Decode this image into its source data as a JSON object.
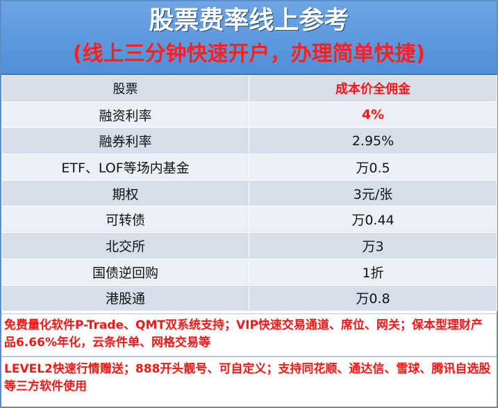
{
  "header": {
    "title": "股票费率线上参考",
    "subtitle": "(线上三分钟快速开户，办理简单快捷)"
  },
  "table": {
    "header": [
      "股票",
      "成本价全佣金"
    ],
    "rows": [
      {
        "item": "融资利率",
        "value": "4%"
      },
      {
        "item": "融券利率",
        "value": "2.95%"
      },
      {
        "item": "ETF、LOF等场内基金",
        "value": "万0.5"
      },
      {
        "item": "期权",
        "value": "3元/张"
      },
      {
        "item": "可转债",
        "value": "万0.44"
      },
      {
        "item": "北交所",
        "value": "万3"
      },
      {
        "item": "国债逆回购",
        "value": "1折"
      },
      {
        "item": "港股通",
        "value": "万0.8"
      }
    ]
  },
  "notes": [
    "免费量化软件P-Trade、QMT双系统支持；VIP快速交易通道、席位、网关；保本型理财产品6.66%年化，云条件单、网格交易等",
    "LEVEL2快速行情赠送；888开头靓号、可自定义；支持同花顺、通达信、雪球、腾讯自选股等三方软件使用"
  ],
  "colors": {
    "header_blue": "#5a98de",
    "accent_red": "#ff1414",
    "row_shade": "#d6deea",
    "row_plain": "#ecf0f6"
  }
}
